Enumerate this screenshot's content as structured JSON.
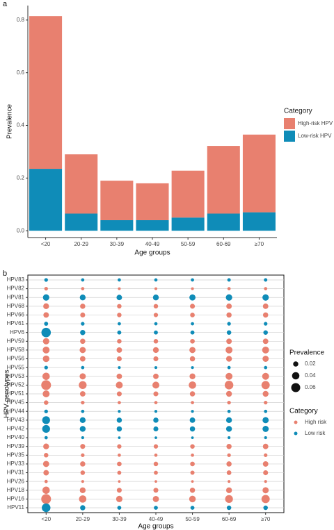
{
  "chart_data": [
    {
      "type": "stacked_bar",
      "panel": "a",
      "xlabel": "Age groups",
      "ylabel": "Prevalence",
      "legend_title": "Category",
      "categories": [
        "<20",
        "20-29",
        "30-39",
        "40-49",
        "50-59",
        "60-69",
        "≥70"
      ],
      "series": [
        {
          "name": "High-risk HPV",
          "color": "#e8806f",
          "values": [
            0.58,
            0.225,
            0.15,
            0.14,
            0.178,
            0.257,
            0.295
          ]
        },
        {
          "name": "Low-risk HPV",
          "color": "#0f8cb8",
          "values": [
            0.235,
            0.065,
            0.04,
            0.04,
            0.05,
            0.065,
            0.07
          ]
        }
      ],
      "ylim": [
        -0.026,
        0.855
      ],
      "yticks": [
        {
          "value": 0,
          "label": "0.0"
        },
        0.2,
        0.4,
        0.6,
        0.8
      ]
    },
    {
      "type": "bubble",
      "panel": "b",
      "xlabel": "Age groups",
      "ylabel": "HPV genotypes",
      "legend_title": "Category",
      "categories": [
        "<20",
        "20-29",
        "30-39",
        "40-49",
        "50-59",
        "60-69",
        "≥70"
      ],
      "series": [
        {
          "name": "High risk",
          "color": "#e8806f"
        },
        {
          "name": "Low risk",
          "color": "#0f8cb8"
        }
      ],
      "size_legend": {
        "title": "Prevalence",
        "values": [
          0.02,
          0.04,
          0.06
        ]
      },
      "grid": true,
      "rows": [
        {
          "label": "HPV83",
          "series": 1,
          "values": [
            0.01,
            0.008,
            0.008,
            0.008,
            0.008,
            0.009,
            0.009
          ]
        },
        {
          "label": "HPV82",
          "series": 0,
          "values": [
            0.01,
            0.008,
            0.006,
            0.006,
            0.006,
            0.008,
            0.008
          ]
        },
        {
          "label": "HPV81",
          "series": 1,
          "values": [
            0.03,
            0.025,
            0.022,
            0.025,
            0.028,
            0.03,
            0.03
          ]
        },
        {
          "label": "HPV68",
          "series": 0,
          "values": [
            0.025,
            0.02,
            0.015,
            0.015,
            0.018,
            0.022,
            0.022
          ]
        },
        {
          "label": "HPV66",
          "series": 0,
          "values": [
            0.022,
            0.018,
            0.015,
            0.014,
            0.016,
            0.02,
            0.02
          ]
        },
        {
          "label": "HPV61",
          "series": 1,
          "values": [
            0.012,
            0.01,
            0.008,
            0.008,
            0.008,
            0.01,
            0.01
          ]
        },
        {
          "label": "HPV6",
          "series": 1,
          "values": [
            0.065,
            0.02,
            0.012,
            0.012,
            0.012,
            0.015,
            0.015
          ]
        },
        {
          "label": "HPV59",
          "series": 0,
          "values": [
            0.03,
            0.02,
            0.015,
            0.015,
            0.016,
            0.022,
            0.022
          ]
        },
        {
          "label": "HPV58",
          "series": 0,
          "values": [
            0.035,
            0.028,
            0.022,
            0.025,
            0.028,
            0.035,
            0.035
          ]
        },
        {
          "label": "HPV56",
          "series": 0,
          "values": [
            0.032,
            0.022,
            0.018,
            0.018,
            0.02,
            0.025,
            0.028
          ]
        },
        {
          "label": "HPV55",
          "series": 1,
          "values": [
            0.01,
            0.008,
            0.006,
            0.006,
            0.006,
            0.008,
            0.008
          ]
        },
        {
          "label": "HPV53",
          "series": 0,
          "values": [
            0.04,
            0.028,
            0.022,
            0.022,
            0.025,
            0.035,
            0.035
          ]
        },
        {
          "label": "HPV52",
          "series": 0,
          "values": [
            0.07,
            0.045,
            0.035,
            0.035,
            0.04,
            0.055,
            0.05
          ]
        },
        {
          "label": "HPV51",
          "series": 0,
          "values": [
            0.035,
            0.022,
            0.018,
            0.018,
            0.02,
            0.025,
            0.025
          ]
        },
        {
          "label": "HPV45",
          "series": 0,
          "values": [
            0.015,
            0.01,
            0.008,
            0.008,
            0.008,
            0.01,
            0.01
          ]
        },
        {
          "label": "HPV44",
          "series": 1,
          "values": [
            0.01,
            0.008,
            0.006,
            0.006,
            0.006,
            0.008,
            0.008
          ]
        },
        {
          "label": "HPV43",
          "series": 1,
          "values": [
            0.045,
            0.025,
            0.02,
            0.02,
            0.022,
            0.025,
            0.028
          ]
        },
        {
          "label": "HPV42",
          "series": 1,
          "values": [
            0.045,
            0.025,
            0.02,
            0.018,
            0.02,
            0.025,
            0.028
          ]
        },
        {
          "label": "HPV40",
          "series": 1,
          "values": [
            0.008,
            0.006,
            0.005,
            0.005,
            0.005,
            0.006,
            0.006
          ]
        },
        {
          "label": "HPV39",
          "series": 0,
          "values": [
            0.025,
            0.018,
            0.014,
            0.014,
            0.015,
            0.02,
            0.022
          ]
        },
        {
          "label": "HPV35",
          "series": 0,
          "values": [
            0.015,
            0.01,
            0.008,
            0.008,
            0.008,
            0.01,
            0.01
          ]
        },
        {
          "label": "HPV33",
          "series": 0,
          "values": [
            0.028,
            0.02,
            0.016,
            0.015,
            0.016,
            0.02,
            0.022
          ]
        },
        {
          "label": "HPV31",
          "series": 0,
          "values": [
            0.022,
            0.015,
            0.012,
            0.012,
            0.013,
            0.016,
            0.018
          ]
        },
        {
          "label": "HPV26",
          "series": 0,
          "values": [
            0.008,
            0.006,
            0.005,
            0.005,
            0.005,
            0.006,
            0.006
          ]
        },
        {
          "label": "HPV18",
          "series": 0,
          "values": [
            0.04,
            0.025,
            0.018,
            0.018,
            0.02,
            0.025,
            0.028
          ]
        },
        {
          "label": "HPV16",
          "series": 0,
          "values": [
            0.07,
            0.04,
            0.03,
            0.028,
            0.032,
            0.045,
            0.05
          ]
        },
        {
          "label": "HPV11",
          "series": 1,
          "values": [
            0.055,
            0.02,
            0.012,
            0.012,
            0.012,
            0.015,
            0.015
          ]
        }
      ]
    }
  ]
}
